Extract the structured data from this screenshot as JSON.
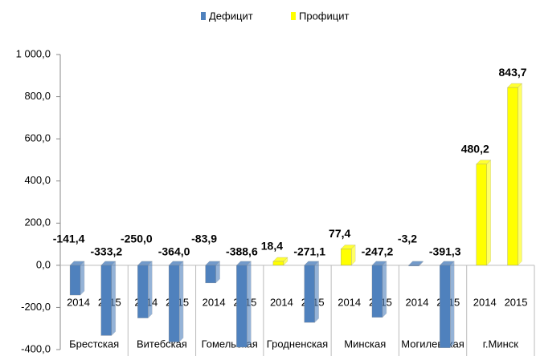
{
  "chart_data": {
    "type": "bar",
    "legend_position": "top",
    "groups": [
      "Брестская",
      "Витебская",
      "Гомельская",
      "Гродненская",
      "Минская",
      "Могилевская",
      "г.Минск"
    ],
    "categories": [
      "2014",
      "2015",
      "2014",
      "2015",
      "2014",
      "2015",
      "2014",
      "2015",
      "2014",
      "2015",
      "2014",
      "2015",
      "2014",
      "2015"
    ],
    "series": [
      {
        "name": "Дефицит",
        "color": "#4f81bd",
        "values": [
          -141.4,
          -333.2,
          -250.0,
          -364.0,
          -83.9,
          -388.6,
          null,
          -271.1,
          null,
          -247.2,
          -3.2,
          -391.3,
          null,
          null
        ],
        "value_labels": [
          "-141,4",
          "-333,2",
          "-250,0",
          "-364,0",
          "-83,9",
          "-388,6",
          null,
          "-271,1",
          null,
          "-247,2",
          "-3,2",
          "-391,3",
          null,
          null
        ]
      },
      {
        "name": "Профицит",
        "color": "#ffff00",
        "values": [
          null,
          null,
          null,
          null,
          null,
          null,
          18.4,
          null,
          77.4,
          null,
          null,
          null,
          480.2,
          843.7
        ],
        "value_labels": [
          null,
          null,
          null,
          null,
          null,
          null,
          "18,4",
          null,
          "77,4",
          null,
          null,
          null,
          "480,2",
          "843,7"
        ]
      }
    ],
    "ylim": [
      -400,
      1000
    ],
    "yticks": [
      {
        "value": 1000,
        "label": "1 000,0"
      },
      {
        "value": 800,
        "label": "800,0"
      },
      {
        "value": 600,
        "label": "600,0"
      },
      {
        "value": 400,
        "label": "400,0"
      },
      {
        "value": 200,
        "label": "200,0"
      },
      {
        "value": 0,
        "label": "0,0"
      },
      {
        "value": -200,
        "label": "-200,0"
      },
      {
        "value": -400,
        "label": "-400,0"
      }
    ],
    "grid": false
  }
}
